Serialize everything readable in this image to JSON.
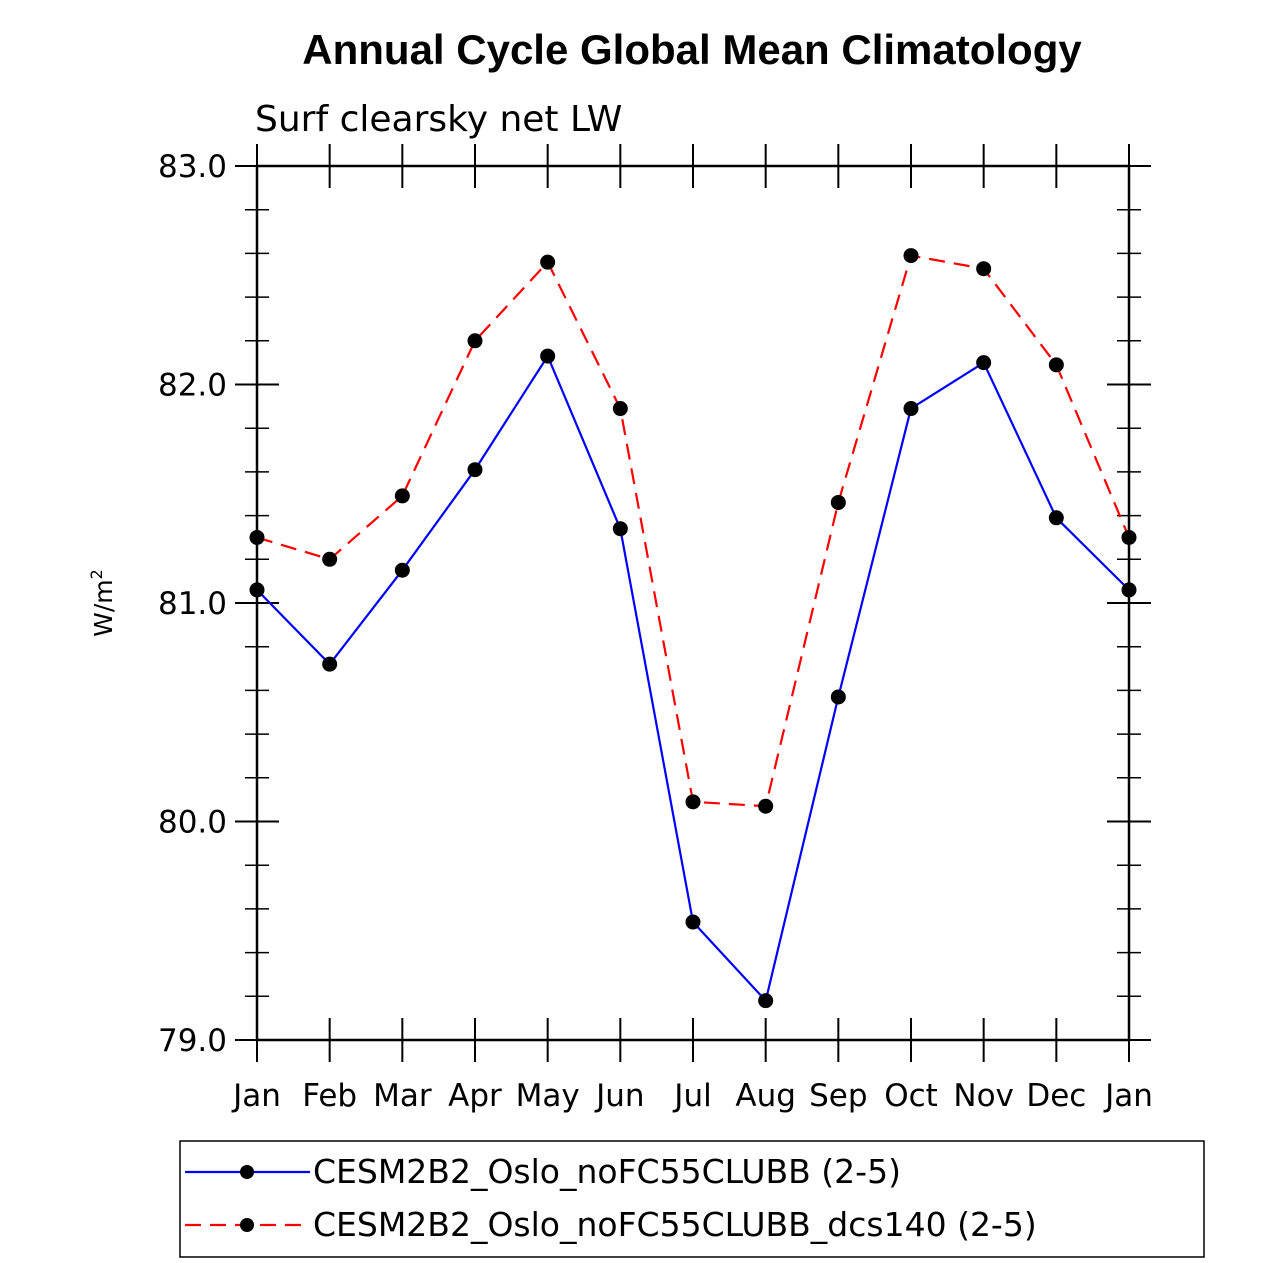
{
  "chart_data": {
    "type": "line",
    "title": "Annual Cycle Global Mean Climatology",
    "subtitle": "Surf clearsky net LW",
    "ylabel": "W/m",
    "ylabel_sup": "2",
    "categories": [
      "Jan",
      "Feb",
      "Mar",
      "Apr",
      "May",
      "Jun",
      "Jul",
      "Aug",
      "Sep",
      "Oct",
      "Nov",
      "Dec",
      "Jan"
    ],
    "ylim": [
      79.0,
      83.0
    ],
    "yticks": [
      79.0,
      80.0,
      81.0,
      82.0,
      83.0
    ],
    "ytick_labels": [
      "79.0",
      "80.0",
      "81.0",
      "82.0",
      "83.0"
    ],
    "legend_position": "bottom",
    "series": [
      {
        "name": "CESM2B2_Oslo_noFC55CLUBB (2-5)",
        "color": "#0000ff",
        "dash": "solid",
        "values": [
          81.06,
          80.72,
          81.15,
          81.61,
          82.13,
          81.34,
          79.54,
          79.18,
          80.57,
          81.89,
          82.1,
          81.39,
          81.06
        ]
      },
      {
        "name": "CESM2B2_Oslo_noFC55CLUBB_dcs140 (2-5)",
        "color": "#ff0000",
        "dash": "dashed",
        "values": [
          81.3,
          81.2,
          81.49,
          82.2,
          82.56,
          81.89,
          80.09,
          80.07,
          81.46,
          82.59,
          82.53,
          82.09,
          81.3
        ]
      }
    ]
  }
}
